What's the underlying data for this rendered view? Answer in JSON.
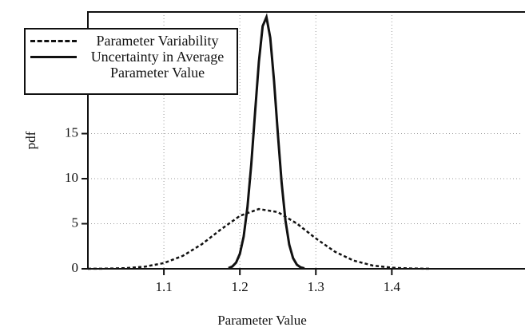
{
  "chart_data": {
    "type": "line",
    "x_label": "Parameter Value",
    "y_label": "pdf",
    "xlim": [
      1.0,
      1.57
    ],
    "ylim": [
      0,
      28.5
    ],
    "xticks": [
      1.1,
      1.2,
      1.3,
      1.4
    ],
    "yticks": [
      0,
      5,
      10,
      15
    ],
    "grid": true,
    "legend": "upper left",
    "series": [
      {
        "name": "Parameter Variability",
        "color": "#111111",
        "dash": "dotted",
        "x": [
          1.0,
          1.025,
          1.05,
          1.075,
          1.1,
          1.125,
          1.15,
          1.175,
          1.2,
          1.225,
          1.25,
          1.275,
          1.3,
          1.325,
          1.35,
          1.375,
          1.4,
          1.425,
          1.45
        ],
        "values": [
          0.004,
          0.019,
          0.074,
          0.236,
          0.636,
          1.438,
          2.73,
          4.37,
          5.87,
          6.63,
          6.29,
          5.02,
          3.37,
          1.9,
          0.9,
          0.358,
          0.12,
          0.034,
          0.008
        ]
      },
      {
        "name": "Uncertainty in Average Parameter Value",
        "color": "#111111",
        "dash": "solid",
        "x": [
          1.185,
          1.19,
          1.195,
          1.2,
          1.205,
          1.21,
          1.215,
          1.22,
          1.225,
          1.23,
          1.235,
          1.24,
          1.245,
          1.25,
          1.255,
          1.26,
          1.265,
          1.27,
          1.275,
          1.28,
          1.285
        ],
        "values": [
          0.08,
          0.25,
          0.68,
          1.66,
          3.58,
          6.85,
          11.58,
          17.34,
          22.96,
          26.93,
          27.93,
          25.64,
          20.83,
          14.97,
          9.53,
          5.36,
          2.67,
          1.18,
          0.46,
          0.16,
          0.05
        ]
      }
    ]
  }
}
